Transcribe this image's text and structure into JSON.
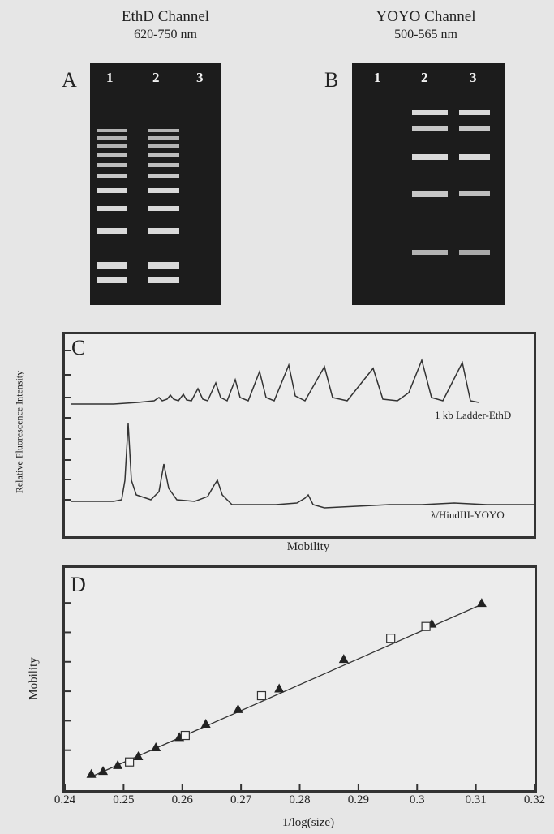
{
  "channels": [
    {
      "title": "EthD Channel",
      "range": "620-750 nm"
    },
    {
      "title": "YOYO Channel",
      "range": "500-565 nm"
    }
  ],
  "gels": [
    {
      "letter": "A",
      "lanes": [
        "1",
        "2",
        "3"
      ]
    },
    {
      "letter": "B",
      "lanes": [
        "1",
        "2",
        "3"
      ]
    }
  ],
  "panel_c": {
    "letter": "C",
    "ylabel": "Relative Fluorescence Intensity",
    "xlabel": "Mobility",
    "trace_labels": [
      "1 kb Ladder-EthD",
      "λ/HindIII-YOYO"
    ]
  },
  "chart_data": {
    "type": "scatter",
    "title": "D",
    "xlabel": "1/log(size)",
    "ylabel": "Mobility",
    "xlim": [
      0.24,
      0.32
    ],
    "x_ticks": [
      "0.24",
      "0.25",
      "0.26",
      "0.27",
      "0.28",
      "0.29",
      "0.3",
      "0.31",
      "0.32"
    ],
    "grid": false,
    "series": [
      {
        "marker": "triangle",
        "x": [
          0.2445,
          0.2465,
          0.249,
          0.2525,
          0.2555,
          0.2595,
          0.264,
          0.2695,
          0.2765,
          0.2875,
          0.3025,
          0.311
        ],
        "y": [
          0.4,
          0.6,
          1.0,
          1.6,
          2.2,
          2.9,
          3.8,
          4.8,
          6.2,
          8.2,
          10.6,
          12.0
        ]
      },
      {
        "marker": "square",
        "x": [
          0.251,
          0.2605,
          0.2735,
          0.2955,
          0.3015
        ],
        "y": [
          1.2,
          3.0,
          5.7,
          9.6,
          10.4
        ]
      }
    ],
    "fit_line": {
      "x": [
        0.2445,
        0.311
      ],
      "y": [
        0.2,
        11.9
      ]
    }
  }
}
